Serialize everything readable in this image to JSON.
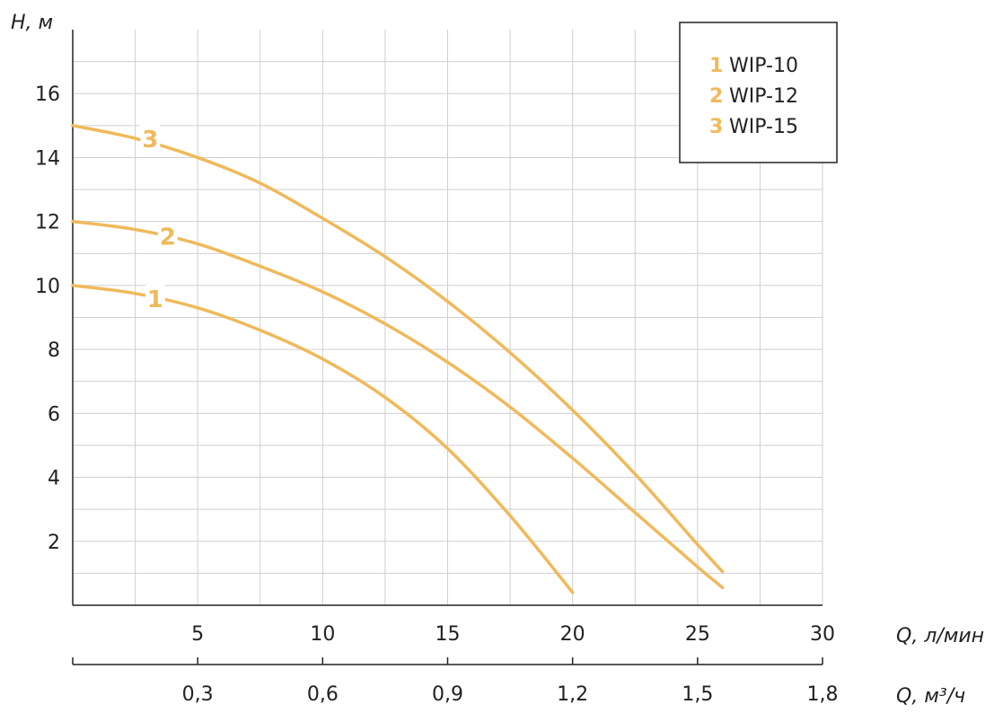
{
  "chart_data": {
    "type": "line",
    "ylabel": "H, м",
    "xlabel": "Q, л/мин",
    "x2label": "Q, м³/ч",
    "xlim": [
      0,
      30
    ],
    "ylim": [
      0,
      18
    ],
    "x_ticks": [
      "5",
      "10",
      "15",
      "20",
      "25",
      "30"
    ],
    "x_tick_values": [
      5,
      10,
      15,
      20,
      25,
      30
    ],
    "x2_ticks": [
      "0,3",
      "0,6",
      "0,9",
      "1,2",
      "1,5",
      "1,8"
    ],
    "y_ticks": [
      "2",
      "4",
      "6",
      "8",
      "10",
      "12",
      "14",
      "16"
    ],
    "y_tick_values": [
      2,
      4,
      6,
      8,
      10,
      12,
      14,
      16
    ],
    "grid": true,
    "legend_position": "top-right",
    "series": [
      {
        "id": "1",
        "name": "WIP-10",
        "color": "#f0b95a",
        "x": [
          0,
          2.5,
          5,
          7.5,
          10,
          12.5,
          15,
          17.5,
          20
        ],
        "y": [
          10,
          9.75,
          9.3,
          8.6,
          7.7,
          6.5,
          4.9,
          2.8,
          0.4
        ]
      },
      {
        "id": "2",
        "name": "WIP-12",
        "color": "#f0b95a",
        "x": [
          0,
          2.5,
          5,
          7.5,
          10,
          12.5,
          15,
          17.5,
          20,
          22.5,
          25,
          26
        ],
        "y": [
          12,
          11.75,
          11.3,
          10.6,
          9.8,
          8.8,
          7.6,
          6.2,
          4.6,
          2.9,
          1.2,
          0.55
        ]
      },
      {
        "id": "3",
        "name": "WIP-15",
        "color": "#f0b95a",
        "x": [
          0,
          2.5,
          5,
          7.5,
          10,
          12.5,
          15,
          17.5,
          20,
          22.5,
          25,
          26
        ],
        "y": [
          15,
          14.6,
          14,
          13.2,
          12.1,
          10.9,
          9.5,
          7.9,
          6.1,
          4.1,
          1.9,
          1.05
        ]
      }
    ],
    "curve_labels": [
      {
        "text": "1",
        "x": 3.3,
        "y": 9.6
      },
      {
        "text": "2",
        "x": 3.8,
        "y": 11.55
      },
      {
        "text": "3",
        "x": 3.1,
        "y": 14.6
      }
    ]
  }
}
